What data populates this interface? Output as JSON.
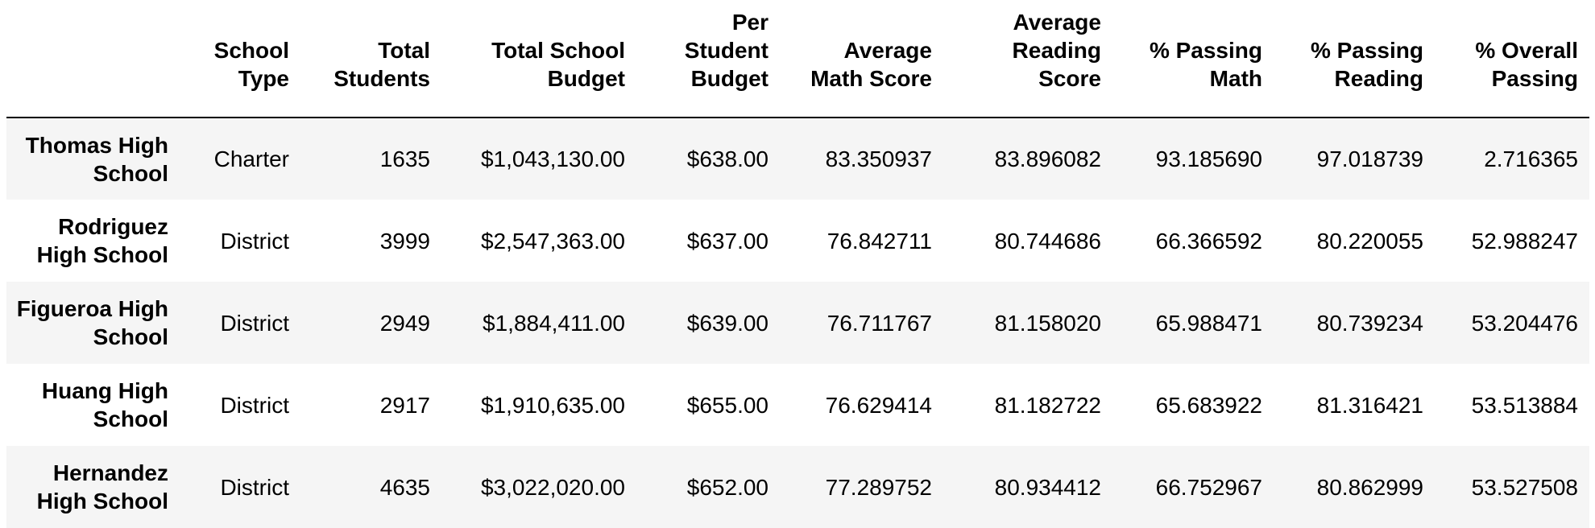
{
  "table": {
    "index_header": "",
    "columns": [
      "School Type",
      "Total Students",
      "Total School Budget",
      "Per Student Budget",
      "Average Math Score",
      "Average Reading Score",
      "% Passing Math",
      "% Passing Reading",
      "% Overall Passing"
    ],
    "rows": [
      {
        "school": "Thomas High School",
        "cells": [
          "Charter",
          "1635",
          "$1,043,130.00",
          "$638.00",
          "83.350937",
          "83.896082",
          "93.185690",
          "97.018739",
          "2.716365"
        ]
      },
      {
        "school": "Rodriguez High School",
        "cells": [
          "District",
          "3999",
          "$2,547,363.00",
          "$637.00",
          "76.842711",
          "80.744686",
          "66.366592",
          "80.220055",
          "52.988247"
        ]
      },
      {
        "school": "Figueroa High School",
        "cells": [
          "District",
          "2949",
          "$1,884,411.00",
          "$639.00",
          "76.711767",
          "81.158020",
          "65.988471",
          "80.739234",
          "53.204476"
        ]
      },
      {
        "school": "Huang High School",
        "cells": [
          "District",
          "2917",
          "$1,910,635.00",
          "$655.00",
          "76.629414",
          "81.182722",
          "65.683922",
          "81.316421",
          "53.513884"
        ]
      },
      {
        "school": "Hernandez High School",
        "cells": [
          "District",
          "4635",
          "$3,022,020.00",
          "$652.00",
          "77.289752",
          "80.934412",
          "66.752967",
          "80.862999",
          "53.527508"
        ]
      }
    ]
  },
  "colors": {
    "stripe": "#f5f5f5",
    "background": "#ffffff",
    "text": "#000000",
    "header_rule": "#000000"
  }
}
